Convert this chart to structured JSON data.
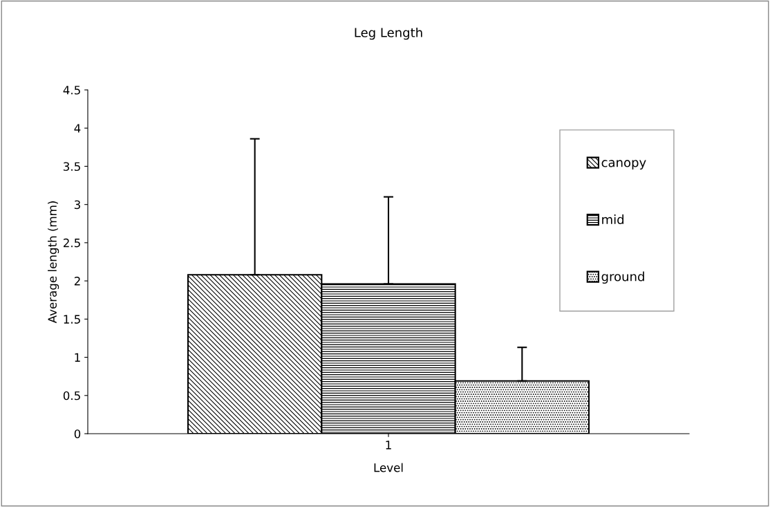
{
  "chart_data": {
    "type": "bar",
    "title": "Leg Length",
    "xlabel": "Level",
    "ylabel": "Average length (mm)",
    "categories": [
      "1"
    ],
    "series": [
      {
        "name": "canopy",
        "color": "#000000",
        "values": [
          2.08
        ],
        "errors": [
          [
            2.08,
            3.86
          ]
        ]
      },
      {
        "name": "mid",
        "color": "#000000",
        "values": [
          1.96
        ],
        "errors": [
          [
            1.96,
            3.1
          ]
        ]
      },
      {
        "name": "ground",
        "color": "#000000",
        "values": [
          0.69
        ],
        "errors": [
          [
            0.69,
            1.13
          ]
        ]
      }
    ],
    "ylim": [
      0,
      4.5
    ],
    "yticks": [
      0,
      0.5,
      1,
      1.5,
      2,
      2.5,
      3,
      3.5,
      4,
      4.5
    ],
    "grid": false,
    "legend": "right"
  }
}
